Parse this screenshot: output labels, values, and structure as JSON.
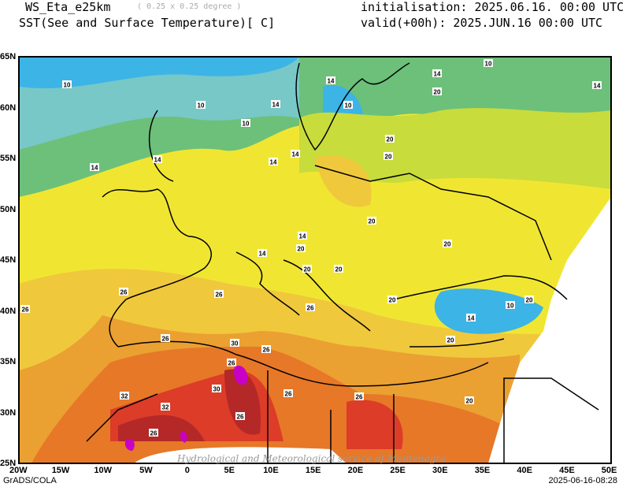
{
  "header": {
    "model": "WS_Eta_e25km",
    "resolution": "( 0.25 x 0.25 degree )",
    "variable": "SST(See and Surface Temperature)[ C]",
    "initialisation": "initialisation: 2025.06.16. 00:00 UTC",
    "valid": "valid(+00h): 2025.JUN.16 00:00 UTC"
  },
  "axes": {
    "lat_ticks": [
      "65N",
      "60N",
      "55N",
      "50N",
      "45N",
      "40N",
      "35N",
      "30N",
      "25N"
    ],
    "lon_ticks": [
      "20W",
      "15W",
      "10W",
      "5W",
      "0",
      "5E",
      "10E",
      "15E",
      "20E",
      "25E",
      "30E",
      "35E",
      "40E",
      "45E",
      "50E"
    ]
  },
  "contour_labels": [
    "10",
    "10",
    "10",
    "10",
    "14",
    "14",
    "14",
    "10",
    "14",
    "14",
    "20",
    "14",
    "14",
    "14",
    "20",
    "14",
    "20",
    "20",
    "20",
    "20",
    "20",
    "20",
    "14",
    "10",
    "20",
    "14",
    "20",
    "20",
    "26",
    "26",
    "26",
    "26",
    "26",
    "30",
    "26",
    "26",
    "30",
    "32",
    "32",
    "26",
    "26",
    "26",
    "26",
    "20"
  ],
  "colors": {
    "blue": "#3cb4e6",
    "teal": "#78c8c8",
    "green": "#6cc07a",
    "lime": "#c8dc3c",
    "yellow": "#f0e632",
    "gold": "#f0c83c",
    "orange": "#eba032",
    "darkorange": "#e67828",
    "red": "#dc3c28",
    "darkred": "#b42828",
    "magenta": "#c800c8"
  },
  "watermark": "Hydrological and Meteorological service of Montenegro",
  "footer": {
    "left": "GrADS/COLA",
    "right": "2025-06-16-08:28"
  }
}
